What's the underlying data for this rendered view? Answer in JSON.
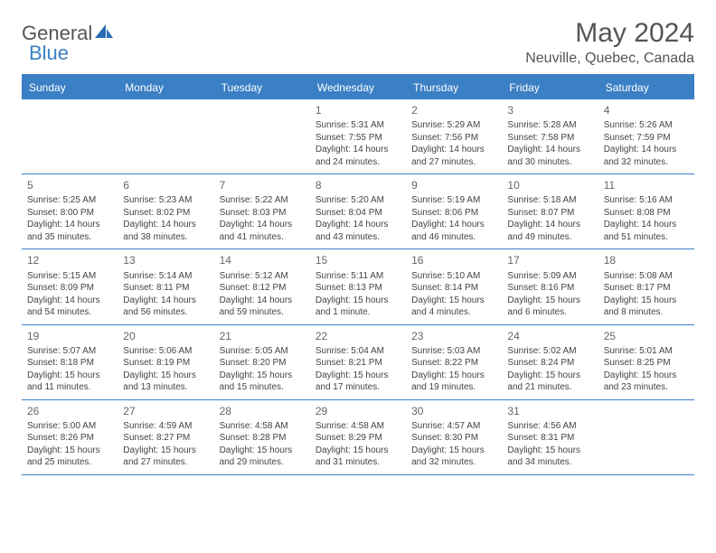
{
  "logo": {
    "part1": "General",
    "part2": "Blue"
  },
  "title": "May 2024",
  "location": "Neuville, Quebec, Canada",
  "colors": {
    "accent": "#3b7fc4",
    "text": "#444444",
    "muted": "#666666",
    "background": "#ffffff"
  },
  "dayHeaders": [
    "Sunday",
    "Monday",
    "Tuesday",
    "Wednesday",
    "Thursday",
    "Friday",
    "Saturday"
  ],
  "weeks": [
    [
      null,
      null,
      null,
      {
        "n": "1",
        "sr": "Sunrise: 5:31 AM",
        "ss": "Sunset: 7:55 PM",
        "dl1": "Daylight: 14 hours",
        "dl2": "and 24 minutes."
      },
      {
        "n": "2",
        "sr": "Sunrise: 5:29 AM",
        "ss": "Sunset: 7:56 PM",
        "dl1": "Daylight: 14 hours",
        "dl2": "and 27 minutes."
      },
      {
        "n": "3",
        "sr": "Sunrise: 5:28 AM",
        "ss": "Sunset: 7:58 PM",
        "dl1": "Daylight: 14 hours",
        "dl2": "and 30 minutes."
      },
      {
        "n": "4",
        "sr": "Sunrise: 5:26 AM",
        "ss": "Sunset: 7:59 PM",
        "dl1": "Daylight: 14 hours",
        "dl2": "and 32 minutes."
      }
    ],
    [
      {
        "n": "5",
        "sr": "Sunrise: 5:25 AM",
        "ss": "Sunset: 8:00 PM",
        "dl1": "Daylight: 14 hours",
        "dl2": "and 35 minutes."
      },
      {
        "n": "6",
        "sr": "Sunrise: 5:23 AM",
        "ss": "Sunset: 8:02 PM",
        "dl1": "Daylight: 14 hours",
        "dl2": "and 38 minutes."
      },
      {
        "n": "7",
        "sr": "Sunrise: 5:22 AM",
        "ss": "Sunset: 8:03 PM",
        "dl1": "Daylight: 14 hours",
        "dl2": "and 41 minutes."
      },
      {
        "n": "8",
        "sr": "Sunrise: 5:20 AM",
        "ss": "Sunset: 8:04 PM",
        "dl1": "Daylight: 14 hours",
        "dl2": "and 43 minutes."
      },
      {
        "n": "9",
        "sr": "Sunrise: 5:19 AM",
        "ss": "Sunset: 8:06 PM",
        "dl1": "Daylight: 14 hours",
        "dl2": "and 46 minutes."
      },
      {
        "n": "10",
        "sr": "Sunrise: 5:18 AM",
        "ss": "Sunset: 8:07 PM",
        "dl1": "Daylight: 14 hours",
        "dl2": "and 49 minutes."
      },
      {
        "n": "11",
        "sr": "Sunrise: 5:16 AM",
        "ss": "Sunset: 8:08 PM",
        "dl1": "Daylight: 14 hours",
        "dl2": "and 51 minutes."
      }
    ],
    [
      {
        "n": "12",
        "sr": "Sunrise: 5:15 AM",
        "ss": "Sunset: 8:09 PM",
        "dl1": "Daylight: 14 hours",
        "dl2": "and 54 minutes."
      },
      {
        "n": "13",
        "sr": "Sunrise: 5:14 AM",
        "ss": "Sunset: 8:11 PM",
        "dl1": "Daylight: 14 hours",
        "dl2": "and 56 minutes."
      },
      {
        "n": "14",
        "sr": "Sunrise: 5:12 AM",
        "ss": "Sunset: 8:12 PM",
        "dl1": "Daylight: 14 hours",
        "dl2": "and 59 minutes."
      },
      {
        "n": "15",
        "sr": "Sunrise: 5:11 AM",
        "ss": "Sunset: 8:13 PM",
        "dl1": "Daylight: 15 hours",
        "dl2": "and 1 minute."
      },
      {
        "n": "16",
        "sr": "Sunrise: 5:10 AM",
        "ss": "Sunset: 8:14 PM",
        "dl1": "Daylight: 15 hours",
        "dl2": "and 4 minutes."
      },
      {
        "n": "17",
        "sr": "Sunrise: 5:09 AM",
        "ss": "Sunset: 8:16 PM",
        "dl1": "Daylight: 15 hours",
        "dl2": "and 6 minutes."
      },
      {
        "n": "18",
        "sr": "Sunrise: 5:08 AM",
        "ss": "Sunset: 8:17 PM",
        "dl1": "Daylight: 15 hours",
        "dl2": "and 8 minutes."
      }
    ],
    [
      {
        "n": "19",
        "sr": "Sunrise: 5:07 AM",
        "ss": "Sunset: 8:18 PM",
        "dl1": "Daylight: 15 hours",
        "dl2": "and 11 minutes."
      },
      {
        "n": "20",
        "sr": "Sunrise: 5:06 AM",
        "ss": "Sunset: 8:19 PM",
        "dl1": "Daylight: 15 hours",
        "dl2": "and 13 minutes."
      },
      {
        "n": "21",
        "sr": "Sunrise: 5:05 AM",
        "ss": "Sunset: 8:20 PM",
        "dl1": "Daylight: 15 hours",
        "dl2": "and 15 minutes."
      },
      {
        "n": "22",
        "sr": "Sunrise: 5:04 AM",
        "ss": "Sunset: 8:21 PM",
        "dl1": "Daylight: 15 hours",
        "dl2": "and 17 minutes."
      },
      {
        "n": "23",
        "sr": "Sunrise: 5:03 AM",
        "ss": "Sunset: 8:22 PM",
        "dl1": "Daylight: 15 hours",
        "dl2": "and 19 minutes."
      },
      {
        "n": "24",
        "sr": "Sunrise: 5:02 AM",
        "ss": "Sunset: 8:24 PM",
        "dl1": "Daylight: 15 hours",
        "dl2": "and 21 minutes."
      },
      {
        "n": "25",
        "sr": "Sunrise: 5:01 AM",
        "ss": "Sunset: 8:25 PM",
        "dl1": "Daylight: 15 hours",
        "dl2": "and 23 minutes."
      }
    ],
    [
      {
        "n": "26",
        "sr": "Sunrise: 5:00 AM",
        "ss": "Sunset: 8:26 PM",
        "dl1": "Daylight: 15 hours",
        "dl2": "and 25 minutes."
      },
      {
        "n": "27",
        "sr": "Sunrise: 4:59 AM",
        "ss": "Sunset: 8:27 PM",
        "dl1": "Daylight: 15 hours",
        "dl2": "and 27 minutes."
      },
      {
        "n": "28",
        "sr": "Sunrise: 4:58 AM",
        "ss": "Sunset: 8:28 PM",
        "dl1": "Daylight: 15 hours",
        "dl2": "and 29 minutes."
      },
      {
        "n": "29",
        "sr": "Sunrise: 4:58 AM",
        "ss": "Sunset: 8:29 PM",
        "dl1": "Daylight: 15 hours",
        "dl2": "and 31 minutes."
      },
      {
        "n": "30",
        "sr": "Sunrise: 4:57 AM",
        "ss": "Sunset: 8:30 PM",
        "dl1": "Daylight: 15 hours",
        "dl2": "and 32 minutes."
      },
      {
        "n": "31",
        "sr": "Sunrise: 4:56 AM",
        "ss": "Sunset: 8:31 PM",
        "dl1": "Daylight: 15 hours",
        "dl2": "and 34 minutes."
      },
      null
    ]
  ]
}
